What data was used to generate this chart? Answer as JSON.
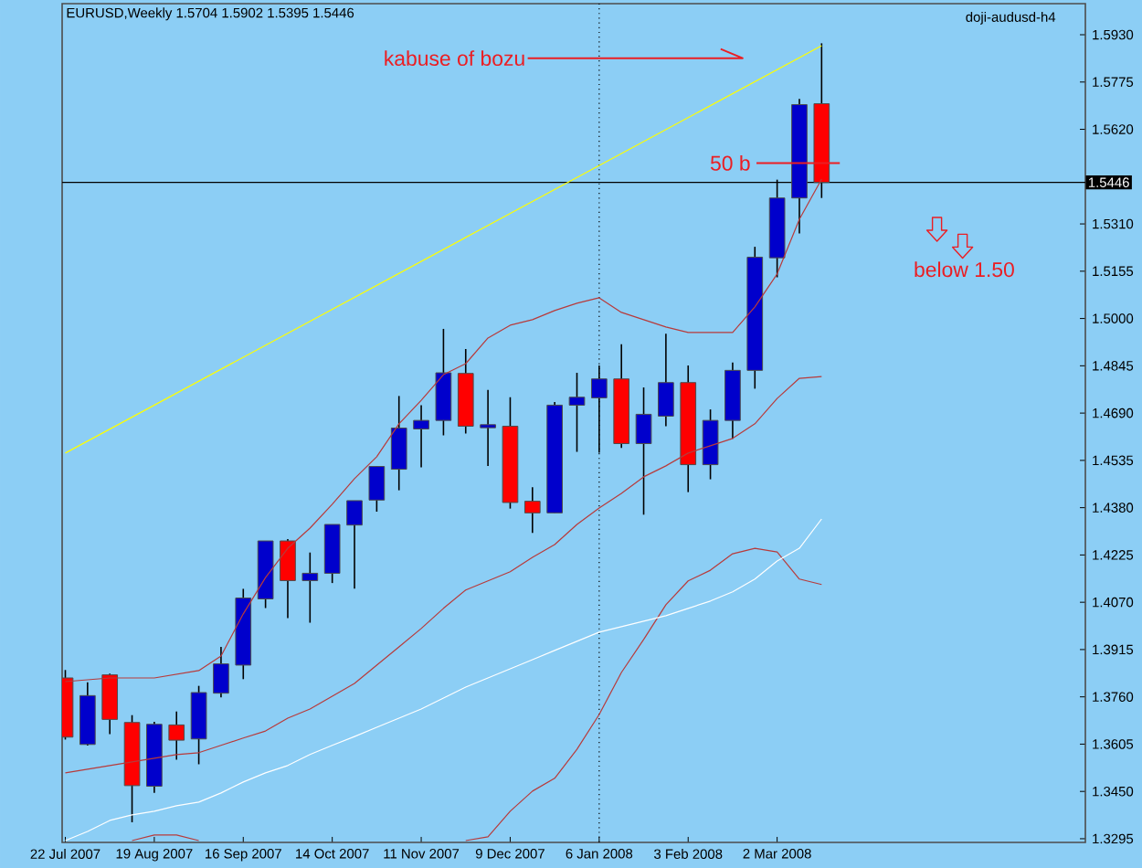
{
  "chart_data": {
    "type": "candlestick",
    "title": "EURUSD,Weekly 1.5704 1.5902 1.5395 1.5446",
    "x": [
      "2007-07-22",
      "2007-07-29",
      "2007-08-05",
      "2007-08-12",
      "2007-08-19",
      "2007-08-26",
      "2007-09-02",
      "2007-09-09",
      "2007-09-16",
      "2007-09-23",
      "2007-09-30",
      "2007-10-07",
      "2007-10-14",
      "2007-10-21",
      "2007-10-28",
      "2007-11-04",
      "2007-11-11",
      "2007-11-18",
      "2007-11-25",
      "2007-12-02",
      "2007-12-09",
      "2007-12-16",
      "2007-12-23",
      "2007-12-30",
      "2008-01-06",
      "2008-01-13",
      "2008-01-20",
      "2008-01-27",
      "2008-02-03",
      "2008-02-10",
      "2008-02-17",
      "2008-02-24",
      "2008-03-02",
      "2008-03-09",
      "2008-03-16"
    ],
    "ohlc": [
      [
        1.3822,
        1.3848,
        1.362,
        1.3628
      ],
      [
        1.3604,
        1.3808,
        1.36,
        1.3764
      ],
      [
        1.3832,
        1.3836,
        1.3638,
        1.3686
      ],
      [
        1.3676,
        1.37,
        1.3349,
        1.3469
      ],
      [
        1.3467,
        1.3678,
        1.3445,
        1.367
      ],
      [
        1.3668,
        1.3712,
        1.3554,
        1.3618
      ],
      [
        1.3622,
        1.3796,
        1.3539,
        1.3774
      ],
      [
        1.3772,
        1.3924,
        1.3758,
        1.3868
      ],
      [
        1.3864,
        1.4114,
        1.3818,
        1.4084
      ],
      [
        1.4081,
        1.4271,
        1.4051,
        1.4271
      ],
      [
        1.4271,
        1.4277,
        1.4018,
        1.4141
      ],
      [
        1.4141,
        1.4233,
        1.4003,
        1.4165
      ],
      [
        1.4165,
        1.4325,
        1.4133,
        1.4325
      ],
      [
        1.4323,
        1.4403,
        1.4115,
        1.4403
      ],
      [
        1.4405,
        1.4515,
        1.4367,
        1.4515
      ],
      [
        1.4506,
        1.4746,
        1.4437,
        1.4641
      ],
      [
        1.4638,
        1.4716,
        1.4512,
        1.4666
      ],
      [
        1.4666,
        1.4966,
        1.4617,
        1.4822
      ],
      [
        1.482,
        1.49,
        1.4623,
        1.4647
      ],
      [
        1.4642,
        1.4766,
        1.4517,
        1.4652
      ],
      [
        1.4647,
        1.4742,
        1.4377,
        1.4397
      ],
      [
        1.4401,
        1.4447,
        1.4297,
        1.4363
      ],
      [
        1.4363,
        1.4726,
        1.4363,
        1.4716
      ],
      [
        1.4716,
        1.4822,
        1.4563,
        1.4742
      ],
      [
        1.474,
        1.4846,
        1.456,
        1.4802
      ],
      [
        1.4802,
        1.4916,
        1.4576,
        1.459
      ],
      [
        1.459,
        1.4774,
        1.4357,
        1.4686
      ],
      [
        1.468,
        1.495,
        1.4647,
        1.479
      ],
      [
        1.479,
        1.4846,
        1.4431,
        1.4521
      ],
      [
        1.4521,
        1.4702,
        1.4473,
        1.4666
      ],
      [
        1.4666,
        1.4856,
        1.4606,
        1.483
      ],
      [
        1.483,
        1.5235,
        1.477,
        1.5201
      ],
      [
        1.5199,
        1.5455,
        1.5135,
        1.5395
      ],
      [
        1.5395,
        1.572,
        1.5279,
        1.5701
      ],
      [
        1.5704,
        1.5902,
        1.5395,
        1.5446
      ]
    ],
    "colors": [
      "#ff0000",
      "#0000cc",
      "#ff0000",
      "#ff0000",
      "#0000cc",
      "#ff0000",
      "#0000cc",
      "#0000cc",
      "#0000cc",
      "#0000cc",
      "#ff0000",
      "#0000cc",
      "#0000cc",
      "#0000cc",
      "#0000cc",
      "#0000cc",
      "#0000cc",
      "#0000cc",
      "#ff0000",
      "#0000cc",
      "#ff0000",
      "#ff0000",
      "#0000cc",
      "#0000cc",
      "#0000cc",
      "#ff0000",
      "#0000cc",
      "#0000cc",
      "#ff0000",
      "#0000cc",
      "#0000cc",
      "#0000cc",
      "#0000cc",
      "#0000cc",
      "#ff0000"
    ],
    "series": [
      {
        "type": "line",
        "color": "#ffff00",
        "x": [
          "2007-07-22",
          "2008-03-16"
        ],
        "values": [
          1.4559,
          1.5894
        ]
      },
      {
        "type": "line",
        "color": "#b83a3a",
        "values": [
          1.381,
          1.3816,
          1.3822,
          1.3822,
          1.3822,
          1.3834,
          1.3846,
          1.3894,
          1.4032,
          1.4151,
          1.4247,
          1.4313,
          1.4391,
          1.4475,
          1.4547,
          1.4655,
          1.4732,
          1.4816,
          1.4852,
          1.4936,
          1.4978,
          1.4996,
          1.5026,
          1.505,
          1.5068,
          1.502,
          1.4996,
          1.4972,
          1.4954,
          1.4954,
          1.4954,
          1.5038,
          1.5146,
          1.5325,
          1.5457
        ]
      },
      {
        "type": "line",
        "color": "#b83a3a",
        "values": [
          1.3511,
          1.3523,
          1.3535,
          1.3547,
          1.3559,
          1.3571,
          1.3577,
          1.3601,
          1.3625,
          1.3648,
          1.369,
          1.372,
          1.3762,
          1.3804,
          1.3864,
          1.3924,
          1.3984,
          1.405,
          1.411,
          1.414,
          1.417,
          1.4217,
          1.4259,
          1.4325,
          1.4379,
          1.4427,
          1.4481,
          1.4517,
          1.4559,
          1.4583,
          1.4607,
          1.4655,
          1.4738,
          1.4804,
          1.481
        ]
      },
      {
        "type": "line",
        "color": "#b83a3a",
        "values": [
          null,
          null,
          null,
          1.3289,
          1.3307,
          1.3307,
          1.3289,
          null,
          null,
          null,
          null,
          null,
          null,
          null,
          null,
          null,
          null,
          null,
          1.3289,
          1.3301,
          1.3385,
          1.3451,
          1.3493,
          1.3588,
          1.3702,
          1.384,
          1.3948,
          1.4062,
          1.414,
          1.4175,
          1.4229,
          1.4247,
          1.4235,
          1.4146,
          1.4128
        ]
      },
      {
        "type": "line",
        "color": "#ffffff",
        "values": [
          1.3289,
          1.3319,
          1.3355,
          1.3373,
          1.3385,
          1.3403,
          1.3415,
          1.3445,
          1.3481,
          1.3511,
          1.3535,
          1.3571,
          1.3601,
          1.363,
          1.366,
          1.369,
          1.372,
          1.3756,
          1.3792,
          1.3822,
          1.3852,
          1.3882,
          1.3912,
          1.3942,
          1.3972,
          1.399,
          1.4008,
          1.4026,
          1.405,
          1.4074,
          1.4104,
          1.4146,
          1.4205,
          1.4247,
          1.4343
        ]
      }
    ],
    "xlim": [
      "2007-07-21",
      "2008-06-07"
    ],
    "ylim": [
      1.3283,
      1.6032
    ],
    "xticks": [
      {
        "value": "2007-07-22",
        "label": "22 Jul 2007"
      },
      {
        "value": "2007-08-19",
        "label": "19 Aug 2007"
      },
      {
        "value": "2007-09-16",
        "label": "16 Sep 2007"
      },
      {
        "value": "2007-10-14",
        "label": "14 Oct 2007"
      },
      {
        "value": "2007-11-11",
        "label": "11 Nov 2007"
      },
      {
        "value": "2007-12-09",
        "label": "9 Dec 2007"
      },
      {
        "value": "2008-01-06",
        "label": "6 Jan 2008"
      },
      {
        "value": "2008-02-03",
        "label": "3 Feb 2008"
      },
      {
        "value": "2008-03-02",
        "label": "2 Mar 2008"
      }
    ],
    "yticks": [
      {
        "value": 1.3295,
        "label": "1.3295"
      },
      {
        "value": 1.345,
        "label": "1.3450"
      },
      {
        "value": 1.3605,
        "label": "1.3605"
      },
      {
        "value": 1.376,
        "label": "1.3760"
      },
      {
        "value": 1.3915,
        "label": "1.3915"
      },
      {
        "value": 1.407,
        "label": "1.4070"
      },
      {
        "value": 1.4225,
        "label": "1.4225"
      },
      {
        "value": 1.438,
        "label": "1.4380"
      },
      {
        "value": 1.4535,
        "label": "1.4535"
      },
      {
        "value": 1.469,
        "label": "1.4690"
      },
      {
        "value": 1.4845,
        "label": "1.4845"
      },
      {
        "value": 1.5,
        "label": "1.5000"
      },
      {
        "value": 1.5155,
        "label": "1.5155"
      },
      {
        "value": 1.531,
        "label": "1.5310"
      },
      {
        "value": 1.562,
        "label": "1.5620"
      },
      {
        "value": 1.5775,
        "label": "1.5775"
      },
      {
        "value": 1.593,
        "label": "1.5930"
      }
    ],
    "ref_lines": [
      {
        "axis": "y",
        "value": 1.5446,
        "label": "1.5446",
        "color": "#000000"
      },
      {
        "axis": "x",
        "value": "2008-01-06",
        "color": "#000000",
        "line_style": "dotted"
      }
    ],
    "annotations": [
      "kabuse of bozu",
      "50 b",
      "below 1.50",
      "doji-audusd-h4"
    ]
  }
}
